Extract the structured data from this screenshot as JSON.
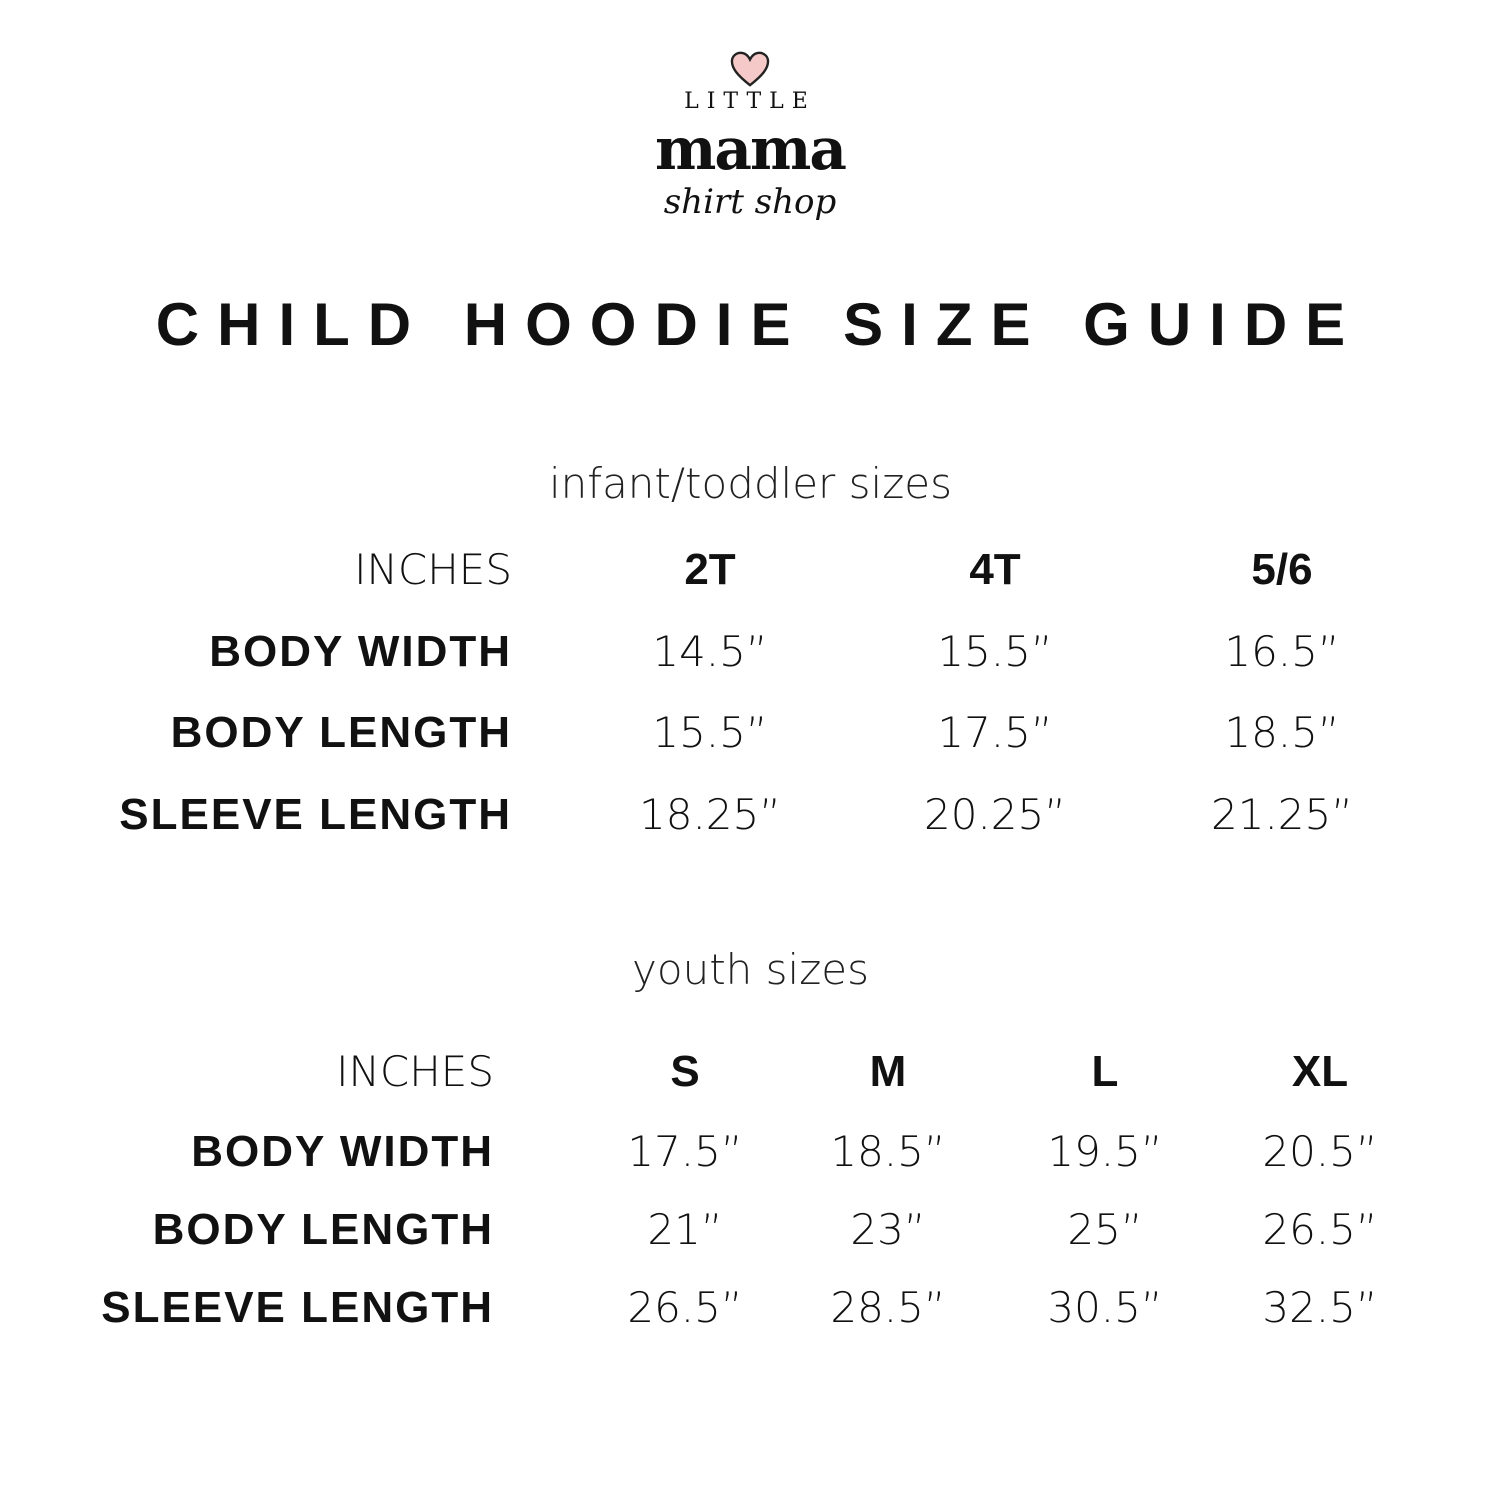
{
  "logo": {
    "little": "LITTLE",
    "mama": "mama",
    "shop": "shirt shop",
    "heart_color": "#f6c9c9"
  },
  "title": "CHILD HOODIE SIZE GUIDE",
  "tables": [
    {
      "subtitle": "infant/toddler sizes",
      "unit_label": "INCHES",
      "columns": [
        "2T",
        "4T",
        "5/6"
      ],
      "rows": [
        {
          "label": "BODY WIDTH",
          "values": [
            "14.5”",
            "15.5”",
            "16.5”"
          ]
        },
        {
          "label": "BODY LENGTH",
          "values": [
            "15.5”",
            "17.5”",
            "18.5”"
          ]
        },
        {
          "label": "SLEEVE LENGTH",
          "values": [
            "18.25”",
            "20.25”",
            "21.25”"
          ]
        }
      ]
    },
    {
      "subtitle": "youth sizes",
      "unit_label": "INCHES",
      "columns": [
        "S",
        "M",
        "L",
        "XL"
      ],
      "rows": [
        {
          "label": "BODY WIDTH",
          "values": [
            "17.5”",
            "18.5”",
            "19.5”",
            "20.5”"
          ]
        },
        {
          "label": "BODY LENGTH",
          "values": [
            "21”",
            "23”",
            "25”",
            "26.5”"
          ]
        },
        {
          "label": "SLEEVE LENGTH",
          "values": [
            "26.5”",
            "28.5”",
            "30.5”",
            "32.5”"
          ]
        }
      ]
    }
  ]
}
